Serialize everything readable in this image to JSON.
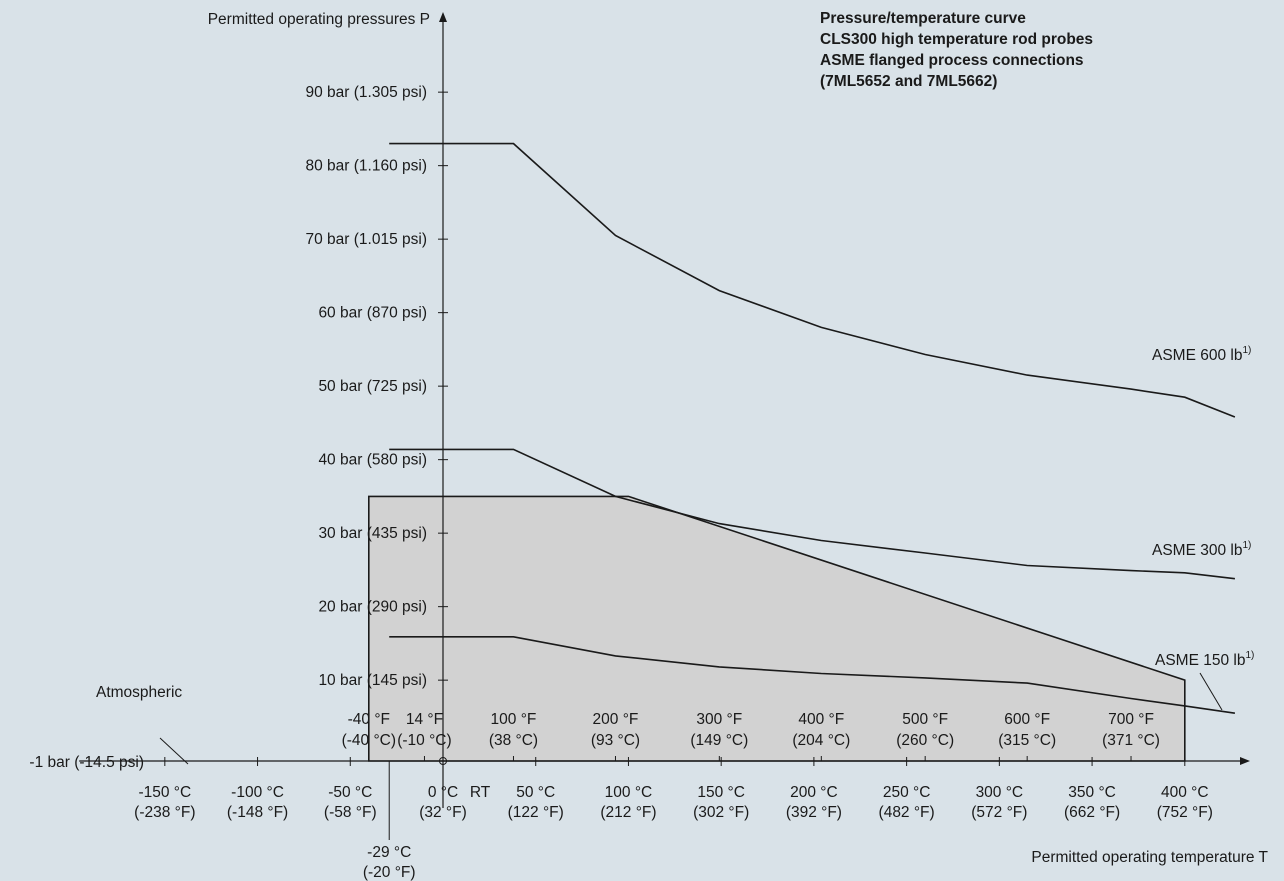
{
  "chart_data": {
    "type": "line",
    "title_lines": [
      "Pressure/temperature curve",
      "CLS300 high temperature rod probes",
      "ASME flanged process connections",
      "(7ML5652 and 7ML5662)"
    ],
    "ylabel": "Permitted operating pressures P",
    "xlabel": "Permitted operating temperature T",
    "xlim_c": [
      -180,
      432
    ],
    "ylim_bar": [
      -1.5,
      98
    ],
    "y_ticks": [
      {
        "v": 10,
        "label": "10 bar (145 psi)"
      },
      {
        "v": 20,
        "label": "20 bar (290 psi)"
      },
      {
        "v": 30,
        "label": "30 bar (435 psi)"
      },
      {
        "v": 40,
        "label": "40 bar (580 psi)"
      },
      {
        "v": 50,
        "label": "50 bar (725 psi)"
      },
      {
        "v": 60,
        "label": "60 bar (870 psi)"
      },
      {
        "v": 70,
        "label": "70 bar (1.015 psi)"
      },
      {
        "v": 80,
        "label": "80 bar (1.160 psi)"
      },
      {
        "v": 90,
        "label": "90 bar (1.305 psi)"
      }
    ],
    "neg_tick": {
      "v": -1,
      "label": "-1 bar (-14.5 psi)"
    },
    "atmospheric_label": "Atmospheric",
    "x_ticks_c": [
      {
        "v": -150,
        "l1": "-150 °C",
        "l2": "(-238 °F)"
      },
      {
        "v": -100,
        "l1": "-100 °C",
        "l2": "(-148 °F)"
      },
      {
        "v": -50,
        "l1": "-50 °C",
        "l2": "(-58 °F)"
      },
      {
        "v": 0,
        "l1": "0 °C",
        "l2": "(32 °F)"
      },
      {
        "v": 50,
        "l1": "50 °C",
        "l2": "(122 °F)"
      },
      {
        "v": 100,
        "l1": "100 °C",
        "l2": "(212 °F)"
      },
      {
        "v": 150,
        "l1": "150 °C",
        "l2": "(302 °F)"
      },
      {
        "v": 200,
        "l1": "200 °C",
        "l2": "(392 °F)"
      },
      {
        "v": 250,
        "l1": "250 °C",
        "l2": "(482 °F)"
      },
      {
        "v": 300,
        "l1": "300 °C",
        "l2": "(572 °F)"
      },
      {
        "v": 350,
        "l1": "350 °C",
        "l2": "(662 °F)"
      },
      {
        "v": 400,
        "l1": "400 °C",
        "l2": "(752 °F)"
      }
    ],
    "rt_label": "RT",
    "neg29": {
      "v": -29,
      "l1": "-29 °C",
      "l2": "(-20 °F)"
    },
    "x_ticks_f": [
      {
        "v": -40,
        "l1": "-40 °F",
        "l2": "(-40 °C)"
      },
      {
        "v": -10,
        "l1": "14 °F",
        "l2": "(-10 °C)"
      },
      {
        "v": 38,
        "l1": "100 °F",
        "l2": "(38 °C)"
      },
      {
        "v": 93,
        "l1": "200 °F",
        "l2": "(93 °C)"
      },
      {
        "v": 149,
        "l1": "300 °F",
        "l2": "(149 °C)"
      },
      {
        "v": 204,
        "l1": "400 °F",
        "l2": "(204 °C)"
      },
      {
        "v": 260,
        "l1": "500 °F",
        "l2": "(260 °C)"
      },
      {
        "v": 315,
        "l1": "600 °F",
        "l2": "(315 °C)"
      },
      {
        "v": 371,
        "l1": "700 °F",
        "l2": "(371 °C)"
      }
    ],
    "series": [
      {
        "name": "ASME 600 lb",
        "sup": "1)",
        "x": [
          -29,
          38,
          93,
          149,
          204,
          260,
          315,
          371,
          400,
          427
        ],
        "y": [
          83,
          83,
          70.5,
          63,
          58,
          54.3,
          51.5,
          49.6,
          48.5,
          45.8
        ]
      },
      {
        "name": "ASME 300 lb",
        "sup": "1)",
        "x": [
          -29,
          38,
          93,
          149,
          204,
          260,
          315,
          371,
          400,
          427
        ],
        "y": [
          41.4,
          41.4,
          35,
          31.3,
          29,
          27.3,
          25.6,
          24.9,
          24.6,
          23.8
        ]
      },
      {
        "name": "ASME 150 lb",
        "sup": "1)",
        "x": [
          -29,
          38,
          93,
          149,
          204,
          260,
          315,
          371,
          400,
          427
        ],
        "y": [
          15.9,
          15.9,
          13.3,
          11.8,
          10.9,
          10.3,
          9.6,
          7.5,
          6.5,
          5.5
        ]
      }
    ],
    "shaded_region": {
      "x": [
        -40,
        -40,
        100,
        400,
        400
      ],
      "y": [
        -1,
        35,
        35,
        10,
        -1
      ]
    }
  }
}
